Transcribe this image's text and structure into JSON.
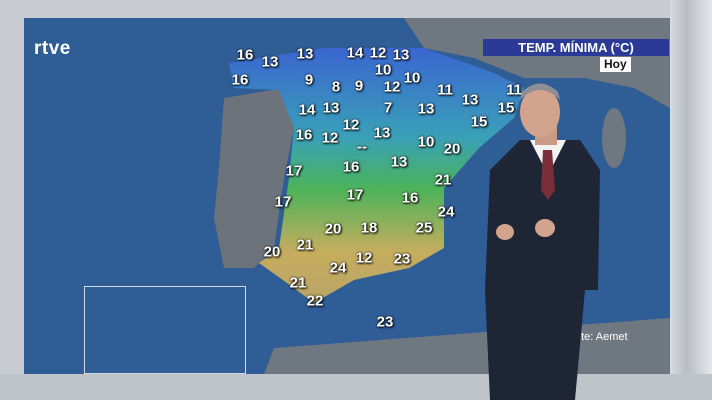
{
  "broadcaster_logo": "rtve",
  "title": "TEMP. MÍNIMA (°C)",
  "day": "Hoy",
  "source": "Fuente: Aemet",
  "temperatures": [
    "16",
    "13",
    "13",
    "14",
    "12",
    "13",
    "16",
    "10",
    "9",
    "8",
    "9",
    "12",
    "10",
    "11",
    "13",
    "11",
    "14",
    "13",
    "7",
    "13",
    "15",
    "15",
    "12",
    "13",
    "16",
    "12",
    "--",
    "10",
    "20",
    "13",
    "17",
    "16",
    "21",
    "17",
    "16",
    "17",
    "24",
    "20",
    "18",
    "25",
    "21",
    "20",
    "12",
    "23",
    "24",
    "21",
    "22",
    "23"
  ],
  "colors": {
    "sea": "#2f5d96",
    "title_bg": "#2a3a96",
    "cold": "#3a62d0",
    "mild": "#3bb36a",
    "warm": "#c9a85a"
  }
}
